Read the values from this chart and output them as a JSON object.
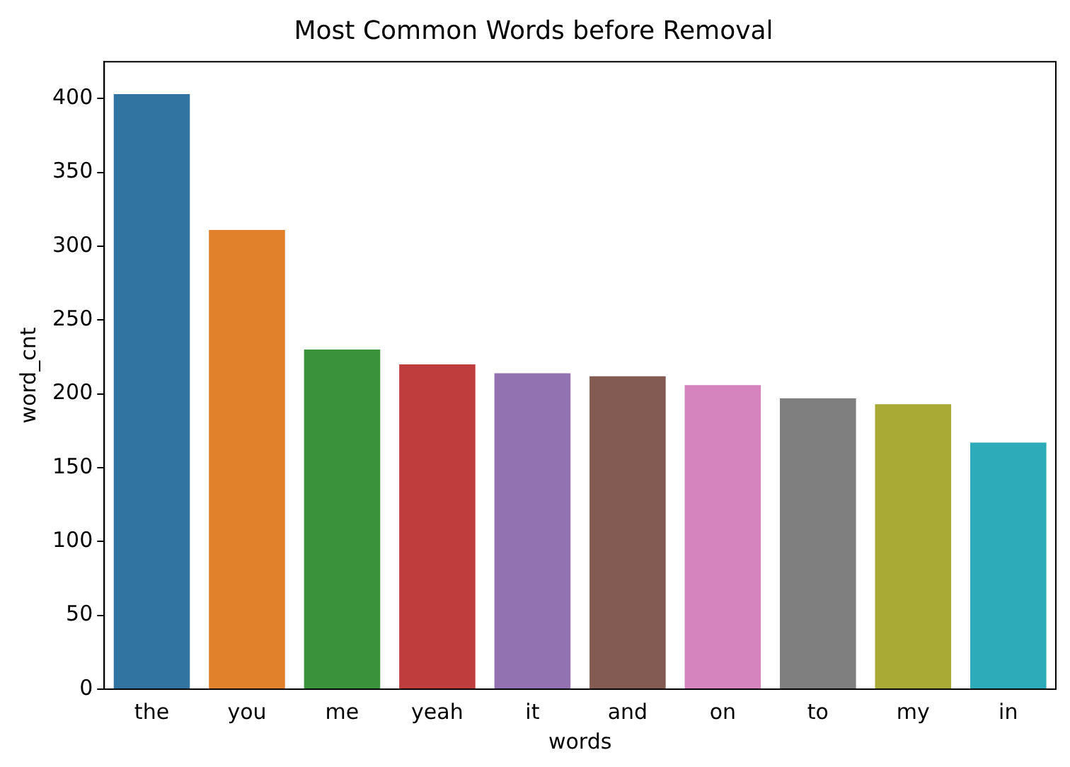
{
  "chart_data": {
    "type": "bar",
    "title": "Most Common Words before Removal",
    "xlabel": "words",
    "ylabel": "word_cnt",
    "categories": [
      "the",
      "you",
      "me",
      "yeah",
      "it",
      "and",
      "on",
      "to",
      "my",
      "in"
    ],
    "values": [
      403,
      311,
      230,
      220,
      214,
      212,
      206,
      197,
      193,
      167
    ],
    "colors": [
      "#3274a1",
      "#e1812c",
      "#3a923a",
      "#c03d3e",
      "#9372b2",
      "#845b53",
      "#d684bd",
      "#7f7f7f",
      "#a9aa35",
      "#2eabb8"
    ],
    "ylim": [
      0,
      425
    ],
    "yticks": [
      0,
      50,
      100,
      150,
      200,
      250,
      300,
      350,
      400
    ],
    "grid": false,
    "legend": false
  }
}
